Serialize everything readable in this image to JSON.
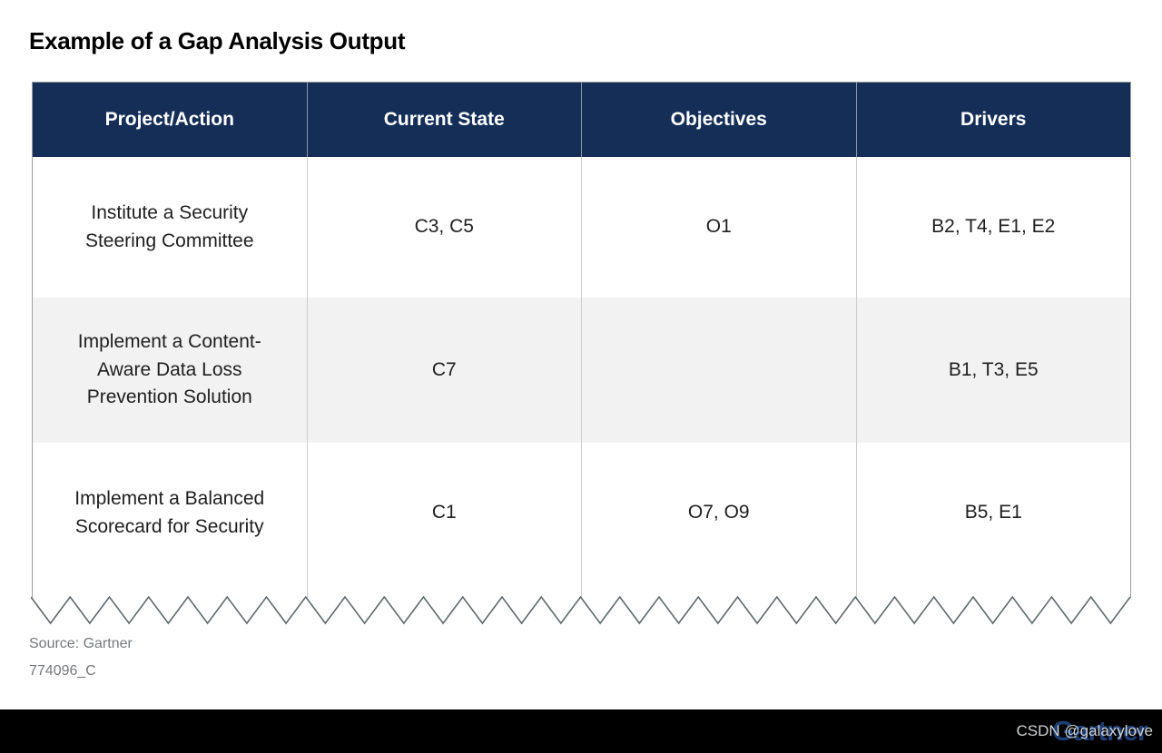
{
  "page": {
    "title": "Example of a Gap Analysis Output",
    "source": "Source: Gartner",
    "document_id": "774096_C",
    "brand": "Gartner",
    "watermark": "CSDN @galaxylove"
  },
  "chart_data": {
    "type": "table",
    "title": "Example of a Gap Analysis Output",
    "columns": [
      "Project/Action",
      "Current State",
      "Objectives",
      "Drivers"
    ],
    "rows": [
      {
        "project": "Institute a Security Steering Committee",
        "current_state": "C3, C5",
        "objectives": "O1",
        "drivers": "B2, T4, E1, E2"
      },
      {
        "project": "Implement a Content-Aware Data Loss Prevention Solution",
        "current_state": "C7",
        "objectives": "",
        "drivers": "B1, T3, E5"
      },
      {
        "project": "Implement a Balanced Scorecard for Security",
        "current_state": "C1",
        "objectives": "O7, O9",
        "drivers": "B5, E1"
      }
    ]
  },
  "colors": {
    "header_bg": "#142E58",
    "header_text": "#FFFFFF",
    "row_alt_bg": "#F2F2F2",
    "body_text": "#1F1F1F",
    "outer_border": "#9E9E9E",
    "column_divider": "#CCCCCC",
    "torn_edge_stroke": "#5F6A6E",
    "source_text": "#75787B",
    "footer_bg": "#000000",
    "logo_navy": "#1D3E73",
    "watermark_text": "#D2D4D6"
  }
}
